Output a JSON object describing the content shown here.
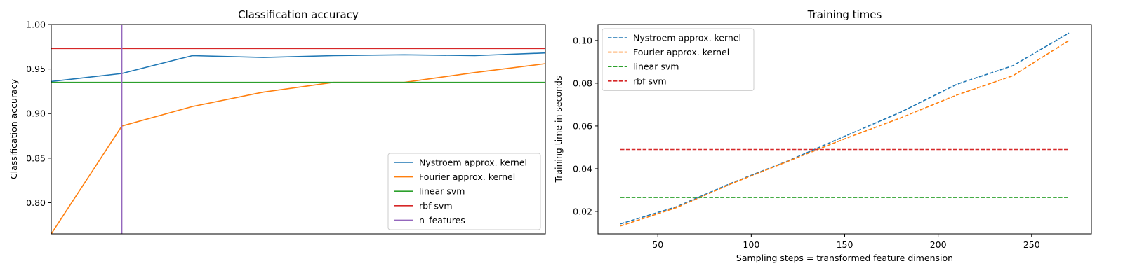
{
  "chart_data": [
    {
      "type": "line",
      "title": "Classification accuracy",
      "xlabel": "",
      "ylabel": "Classification accuracy",
      "xlim": [
        30,
        240
      ],
      "ylim": [
        0.765,
        1.0
      ],
      "xticks": [],
      "yticks": [
        0.8,
        0.85,
        0.9,
        0.95,
        1.0
      ],
      "ytick_labels": [
        "0.80",
        "0.85",
        "0.90",
        "0.95",
        "1.00"
      ],
      "grid": false,
      "legend_position": "lower-right",
      "series": [
        {
          "name": "Nystroem approx. kernel",
          "color": "#1f77b4",
          "style": "solid",
          "x": [
            30,
            60,
            90,
            120,
            150,
            180,
            210,
            240,
            270
          ],
          "y": [
            0.936,
            0.945,
            0.965,
            0.963,
            0.965,
            0.966,
            0.965,
            0.968,
            0.967
          ]
        },
        {
          "name": "Fourier approx. kernel",
          "color": "#ff7f0e",
          "style": "solid",
          "x": [
            30,
            60,
            90,
            120,
            150,
            180,
            210,
            240,
            270
          ],
          "y": [
            0.765,
            0.886,
            0.908,
            0.924,
            0.935,
            0.935,
            0.946,
            0.956,
            0.955
          ]
        },
        {
          "name": "linear svm",
          "color": "#2ca02c",
          "style": "solid",
          "kind": "hline",
          "y": 0.935
        },
        {
          "name": "rbf svm",
          "color": "#d62728",
          "style": "solid",
          "kind": "hline",
          "y": 0.973
        },
        {
          "name": "n_features",
          "color": "#9467bd",
          "style": "solid",
          "kind": "vline",
          "x": 60
        }
      ]
    },
    {
      "type": "line",
      "title": "Training times",
      "xlabel": "Sampling steps = transformed feature dimension",
      "ylabel": "Training time in seconds",
      "xlim": [
        18,
        282
      ],
      "ylim": [
        0.0095,
        0.1075
      ],
      "xticks": [
        50,
        100,
        150,
        200,
        250
      ],
      "xtick_labels": [
        "50",
        "100",
        "150",
        "200",
        "250"
      ],
      "yticks": [
        0.02,
        0.04,
        0.06,
        0.08,
        0.1
      ],
      "ytick_labels": [
        "0.02",
        "0.04",
        "0.06",
        "0.08",
        "0.10"
      ],
      "grid": false,
      "legend_position": "upper-left",
      "series": [
        {
          "name": "Nystroem approx. kernel",
          "color": "#1f77b4",
          "style": "dashed",
          "x": [
            30,
            60,
            90,
            120,
            150,
            180,
            210,
            240,
            270
          ],
          "y": [
            0.0142,
            0.0222,
            0.0335,
            0.0438,
            0.0552,
            0.0665,
            0.0795,
            0.0882,
            0.1035
          ]
        },
        {
          "name": "Fourier approx. kernel",
          "color": "#ff7f0e",
          "style": "dashed",
          "x": [
            30,
            60,
            90,
            120,
            150,
            180,
            210,
            240,
            270
          ],
          "y": [
            0.0132,
            0.0218,
            0.0332,
            0.0436,
            0.054,
            0.0638,
            0.0745,
            0.0835,
            0.1
          ]
        },
        {
          "name": "linear svm",
          "color": "#2ca02c",
          "style": "dashed",
          "x": [
            30,
            270
          ],
          "y": [
            0.0265,
            0.0265
          ]
        },
        {
          "name": "rbf svm",
          "color": "#d62728",
          "style": "dashed",
          "x": [
            30,
            270
          ],
          "y": [
            0.049,
            0.049
          ]
        }
      ]
    }
  ]
}
